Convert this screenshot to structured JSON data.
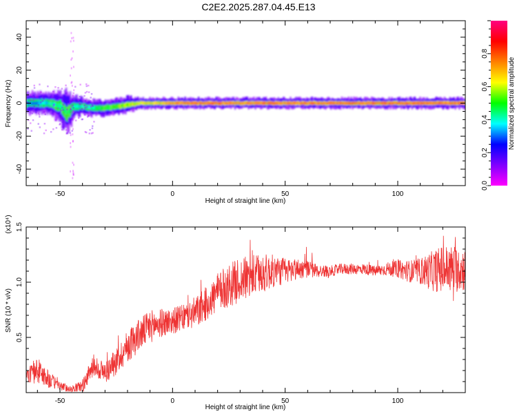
{
  "title": "C2E2.2025.287.04.45.E13",
  "chart_data": [
    {
      "type": "heatmap",
      "xlabel": "Height of straight line (km)",
      "ylabel": "Frequency (Hz)",
      "xlim": [
        -65,
        130
      ],
      "ylim": [
        -50,
        50
      ],
      "xticks": [
        -50,
        0,
        50,
        100
      ],
      "yticks": [
        -40,
        -20,
        0,
        20,
        40
      ],
      "colorbar": {
        "label": "Normalized spectral amplitude",
        "range": [
          0,
          1
        ],
        "ticks": [
          "0.0",
          "0.2",
          "0.4",
          "0.6",
          "0.8"
        ],
        "colormap": [
          "#ff00ff",
          "#8000ff",
          "#0000ff",
          "#00ffff",
          "#00ff00",
          "#ffff00",
          "#ff8000",
          "#ff0000",
          "#ff0080"
        ]
      },
      "ridge": {
        "description_of_values": "peak frequency (Hz) of the dominant band vs height (km)",
        "height": [
          -65,
          -60,
          -55,
          -50,
          -47,
          -44,
          -40,
          -35,
          -30,
          -25,
          -20,
          -15,
          -10,
          -5,
          0,
          10,
          20,
          30,
          40,
          50,
          60,
          70,
          80,
          90,
          100,
          110,
          120,
          130
        ],
        "frequency": [
          0,
          0,
          0,
          -2,
          -6,
          -2,
          -2,
          -3,
          -3,
          -2,
          -1,
          0,
          0,
          0,
          0,
          0,
          0,
          0,
          0,
          0,
          0,
          0,
          0,
          0,
          0,
          0,
          0,
          0
        ],
        "band_halfwidth": [
          4,
          4,
          4,
          6,
          8,
          4,
          3,
          3,
          3,
          3,
          3,
          2,
          2,
          2,
          2,
          2,
          2,
          2,
          2,
          2,
          2,
          2,
          2,
          2,
          2,
          2,
          2,
          2
        ],
        "amplitude": [
          0.3,
          0.35,
          0.4,
          0.45,
          0.5,
          0.4,
          0.4,
          0.45,
          0.5,
          0.55,
          0.6,
          0.65,
          0.7,
          0.75,
          0.8,
          0.85,
          0.85,
          0.85,
          0.85,
          0.85,
          0.85,
          0.85,
          0.85,
          0.85,
          0.85,
          0.85,
          0.85,
          0.85
        ]
      }
    },
    {
      "type": "line",
      "xlabel": "Height of straight line (km)",
      "ylabel": "SNR (10 * v/v)",
      "yscale_label": "(x10⁴)",
      "xlim": [
        -65,
        130
      ],
      "ylim": [
        0,
        1.5
      ],
      "xticks": [
        -50,
        0,
        50,
        100
      ],
      "yticks": [
        0.5,
        1.0,
        1.5
      ],
      "ytick_labels": [
        "0.5",
        "1.0",
        "1.5"
      ],
      "series": [
        {
          "color": "#ee3333",
          "x": [
            -65,
            -60,
            -55,
            -50,
            -45,
            -40,
            -35,
            -30,
            -25,
            -20,
            -15,
            -10,
            -5,
            0,
            5,
            10,
            15,
            20,
            25,
            30,
            35,
            40,
            45,
            50,
            55,
            60,
            65,
            70,
            75,
            80,
            85,
            90,
            95,
            100,
            105,
            110,
            115,
            120,
            125,
            130
          ],
          "y": [
            0.15,
            0.2,
            0.12,
            0.06,
            0.03,
            0.06,
            0.25,
            0.18,
            0.28,
            0.42,
            0.52,
            0.6,
            0.63,
            0.65,
            0.68,
            0.72,
            0.8,
            0.9,
            0.97,
            1.02,
            1.05,
            1.08,
            1.1,
            1.1,
            1.12,
            1.12,
            1.1,
            1.1,
            1.12,
            1.12,
            1.12,
            1.1,
            1.12,
            1.12,
            1.1,
            1.1,
            1.1,
            1.12,
            1.12,
            1.12
          ],
          "noise_amplitude": [
            0.06,
            0.12,
            0.08,
            0.04,
            0.03,
            0.06,
            0.1,
            0.1,
            0.12,
            0.15,
            0.15,
            0.15,
            0.13,
            0.12,
            0.12,
            0.15,
            0.15,
            0.18,
            0.2,
            0.2,
            0.2,
            0.18,
            0.15,
            0.12,
            0.1,
            0.08,
            0.06,
            0.05,
            0.05,
            0.05,
            0.05,
            0.05,
            0.06,
            0.08,
            0.1,
            0.12,
            0.18,
            0.22,
            0.22,
            0.2
          ]
        }
      ]
    }
  ]
}
